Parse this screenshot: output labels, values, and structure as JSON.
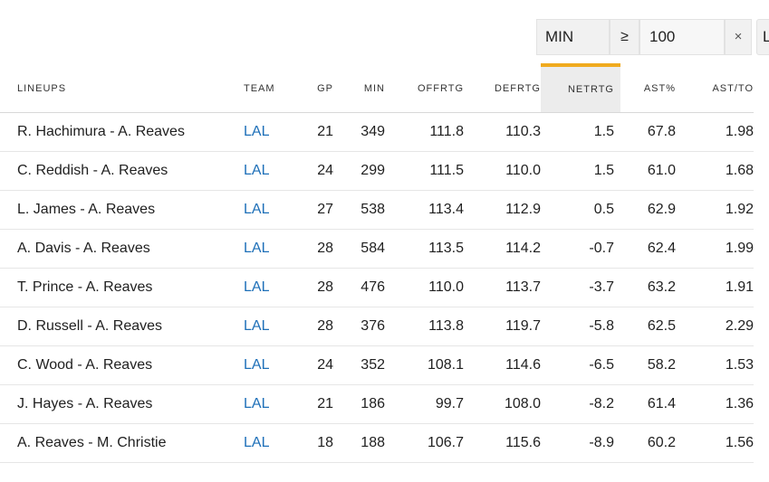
{
  "filter": {
    "field": "MIN",
    "operator": "≥",
    "value": "100",
    "clear_icon": "×",
    "next_field_partial": "L"
  },
  "table": {
    "headers": {
      "lineups": "LINEUPS",
      "team": "TEAM",
      "gp": "GP",
      "min": "MIN",
      "offrtg": "OFFRTG",
      "defrtg": "DEFRTG",
      "netrtg": "NETRTG",
      "ast_pct": "AST%",
      "ast_to": "AST/TO"
    },
    "sorted_column": "NETRTG",
    "sort_accent_color": "#f0aa1e",
    "team_link_color": "#1d6fb8",
    "rows": [
      {
        "lineup": "R. Hachimura - A. Reaves",
        "team": "LAL",
        "gp": "21",
        "min": "349",
        "offrtg": "111.8",
        "defrtg": "110.3",
        "netrtg": "1.5",
        "ast_pct": "67.8",
        "ast_to": "1.98"
      },
      {
        "lineup": "C. Reddish - A. Reaves",
        "team": "LAL",
        "gp": "24",
        "min": "299",
        "offrtg": "111.5",
        "defrtg": "110.0",
        "netrtg": "1.5",
        "ast_pct": "61.0",
        "ast_to": "1.68"
      },
      {
        "lineup": "L. James - A. Reaves",
        "team": "LAL",
        "gp": "27",
        "min": "538",
        "offrtg": "113.4",
        "defrtg": "112.9",
        "netrtg": "0.5",
        "ast_pct": "62.9",
        "ast_to": "1.92"
      },
      {
        "lineup": "A. Davis - A. Reaves",
        "team": "LAL",
        "gp": "28",
        "min": "584",
        "offrtg": "113.5",
        "defrtg": "114.2",
        "netrtg": "-0.7",
        "ast_pct": "62.4",
        "ast_to": "1.99"
      },
      {
        "lineup": "T. Prince - A. Reaves",
        "team": "LAL",
        "gp": "28",
        "min": "476",
        "offrtg": "110.0",
        "defrtg": "113.7",
        "netrtg": "-3.7",
        "ast_pct": "63.2",
        "ast_to": "1.91"
      },
      {
        "lineup": "D. Russell - A. Reaves",
        "team": "LAL",
        "gp": "28",
        "min": "376",
        "offrtg": "113.8",
        "defrtg": "119.7",
        "netrtg": "-5.8",
        "ast_pct": "62.5",
        "ast_to": "2.29"
      },
      {
        "lineup": "C. Wood - A. Reaves",
        "team": "LAL",
        "gp": "24",
        "min": "352",
        "offrtg": "108.1",
        "defrtg": "114.6",
        "netrtg": "-6.5",
        "ast_pct": "58.2",
        "ast_to": "1.53"
      },
      {
        "lineup": "J. Hayes - A. Reaves",
        "team": "LAL",
        "gp": "21",
        "min": "186",
        "offrtg": "99.7",
        "defrtg": "108.0",
        "netrtg": "-8.2",
        "ast_pct": "61.4",
        "ast_to": "1.36"
      },
      {
        "lineup": "A. Reaves - M. Christie",
        "team": "LAL",
        "gp": "18",
        "min": "188",
        "offrtg": "106.7",
        "defrtg": "115.6",
        "netrtg": "-8.9",
        "ast_pct": "60.2",
        "ast_to": "1.56"
      }
    ]
  }
}
